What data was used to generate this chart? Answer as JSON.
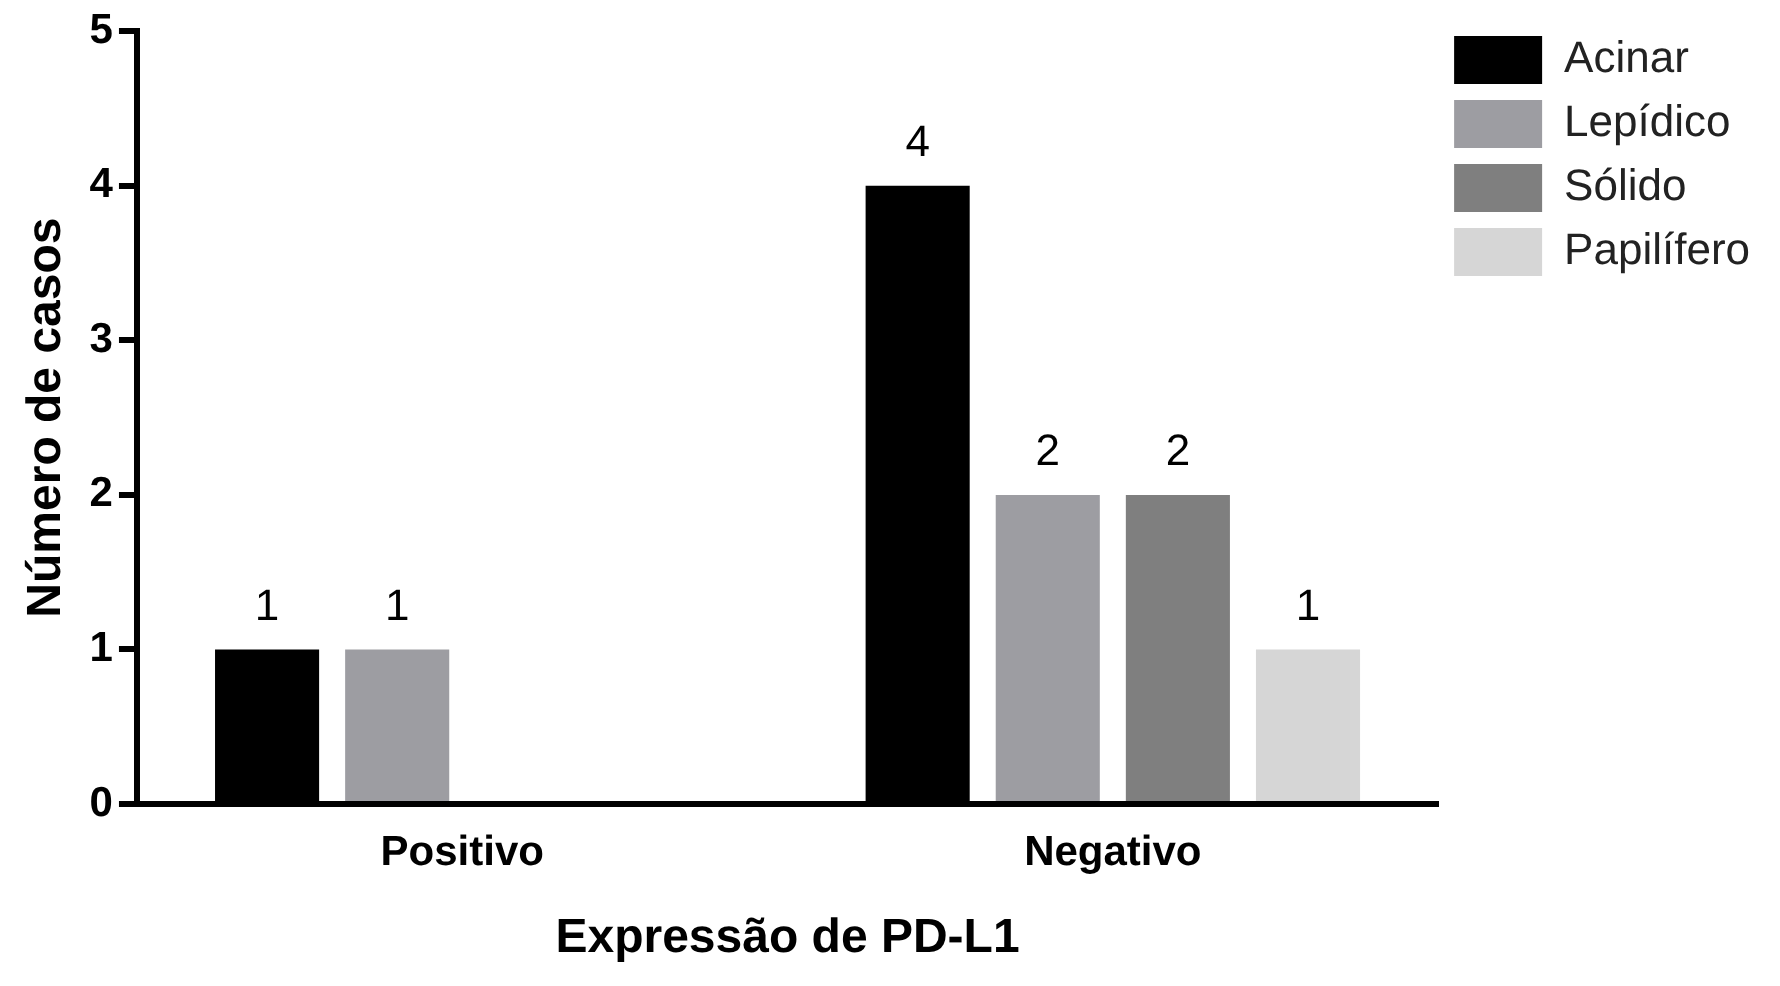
{
  "chart_data": {
    "type": "bar",
    "xlabel": "Expressão de PD-L1",
    "ylabel": "Número de casos",
    "categories": [
      "Positivo",
      "Negativo"
    ],
    "series": [
      {
        "name": "Acinar",
        "color": "#000000",
        "values": [
          1,
          4
        ],
        "value_labels": [
          "1",
          "4"
        ]
      },
      {
        "name": "Lepídico",
        "color": "#9d9da2",
        "values": [
          1,
          2
        ],
        "value_labels": [
          "1",
          "2"
        ]
      },
      {
        "name": "Sólido",
        "color": "#7f7f7f",
        "values": [
          0,
          2
        ],
        "value_labels": [
          null,
          "2"
        ]
      },
      {
        "name": "Papilífero",
        "color": "#d6d6d6",
        "values": [
          0,
          1
        ],
        "value_labels": [
          null,
          "1"
        ]
      }
    ],
    "ylim": [
      0,
      5
    ],
    "yticks": [
      0,
      1,
      2,
      3,
      4,
      5
    ],
    "grid": false,
    "legend": "top right"
  }
}
